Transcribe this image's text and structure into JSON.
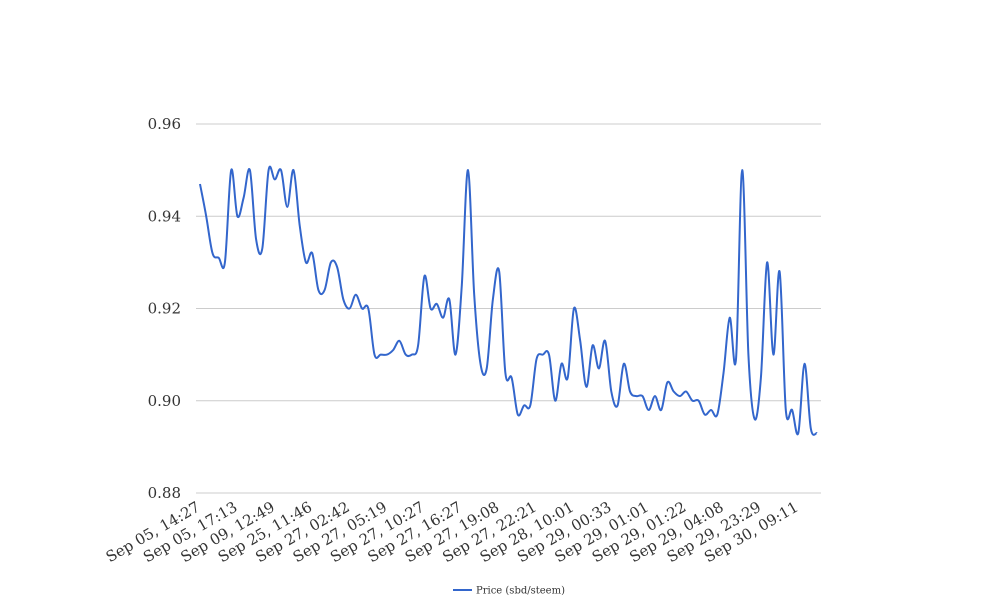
{
  "chart_data": {
    "type": "line",
    "title": "",
    "xlabel": "",
    "ylabel": "",
    "ylim": [
      0.88,
      0.96
    ],
    "y_ticks": [
      "0.88",
      "0.90",
      "0.92",
      "0.94",
      "0.96"
    ],
    "grid": "horizontal",
    "legend_position": "bottom",
    "x_tick_labels": [
      "Sep 05, 14:27",
      "Sep 05, 17:13",
      "Sep 09, 12:49",
      "Sep 25, 11:46",
      "Sep 27, 02:42",
      "Sep 27, 05:19",
      "Sep 27, 10:27",
      "Sep 27, 16:27",
      "Sep 27, 19:08",
      "Sep 27, 22:21",
      "Sep 28, 10:01",
      "Sep 29, 00:33",
      "Sep 29, 01:01",
      "Sep 29, 01:22",
      "Sep 29, 04:08",
      "Sep 29, 23:29",
      "Sep 30, 09:11"
    ],
    "series": [
      {
        "name": "Price (sbd/steem)",
        "color": "#3366cc",
        "values": [
          0.947,
          0.94,
          0.932,
          0.931,
          0.93,
          0.95,
          0.94,
          0.944,
          0.95,
          0.935,
          0.933,
          0.95,
          0.948,
          0.95,
          0.942,
          0.95,
          0.938,
          0.93,
          0.932,
          0.924,
          0.924,
          0.93,
          0.929,
          0.922,
          0.92,
          0.923,
          0.92,
          0.92,
          0.91,
          0.91,
          0.91,
          0.911,
          0.913,
          0.91,
          0.91,
          0.912,
          0.927,
          0.92,
          0.921,
          0.918,
          0.922,
          0.91,
          0.925,
          0.95,
          0.923,
          0.908,
          0.907,
          0.922,
          0.928,
          0.906,
          0.905,
          0.897,
          0.899,
          0.899,
          0.909,
          0.91,
          0.91,
          0.9,
          0.908,
          0.905,
          0.92,
          0.913,
          0.903,
          0.912,
          0.907,
          0.913,
          0.902,
          0.899,
          0.908,
          0.902,
          0.901,
          0.901,
          0.898,
          0.901,
          0.898,
          0.904,
          0.902,
          0.901,
          0.902,
          0.9,
          0.9,
          0.897,
          0.898,
          0.897,
          0.906,
          0.918,
          0.909,
          0.95,
          0.91,
          0.896,
          0.905,
          0.93,
          0.91,
          0.928,
          0.898,
          0.898,
          0.893,
          0.908,
          0.894,
          0.893
        ]
      }
    ]
  }
}
